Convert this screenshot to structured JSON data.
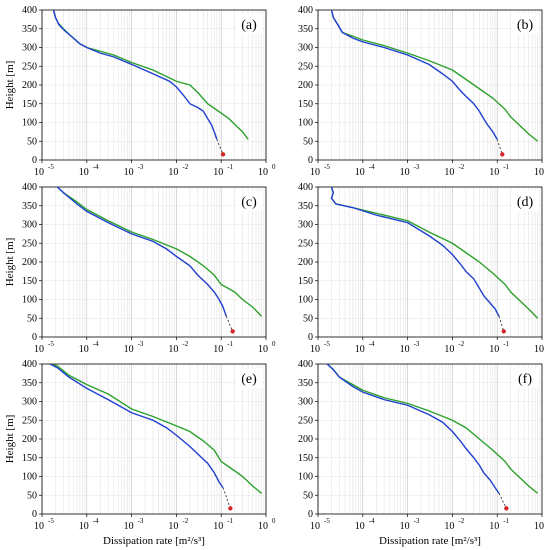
{
  "chart_data": [
    {
      "type": "line",
      "panel_label": "(a)",
      "ylabel": "Height [m]",
      "xlabel": "",
      "x_scale": "log",
      "xlim": [
        1e-05,
        1
      ],
      "ylim": [
        0,
        400
      ],
      "grid": true,
      "series": [
        {
          "color": "#2ca02c",
          "points": [
            [
              1.8e-05,
              400
            ],
            [
              2e-05,
              380
            ],
            [
              2.3e-05,
              365
            ],
            [
              3e-05,
              350
            ],
            [
              4.5e-05,
              330
            ],
            [
              7e-05,
              310
            ],
            [
              0.0001,
              300
            ],
            [
              0.0002,
              290
            ],
            [
              0.0004,
              280
            ],
            [
              0.001,
              260
            ],
            [
              0.003,
              240
            ],
            [
              0.01,
              210
            ],
            [
              0.02,
              200
            ],
            [
              0.03,
              180
            ],
            [
              0.05,
              150
            ],
            [
              0.1,
              125
            ],
            [
              0.15,
              110
            ],
            [
              0.2,
              95
            ],
            [
              0.3,
              75
            ],
            [
              0.4,
              55
            ]
          ]
        },
        {
          "color": "#1f3fd0",
          "points": [
            [
              1.8e-05,
              400
            ],
            [
              2e-05,
              380
            ],
            [
              2.4e-05,
              360
            ],
            [
              3.2e-05,
              345
            ],
            [
              4.5e-05,
              330
            ],
            [
              7e-05,
              310
            ],
            [
              0.0001,
              300
            ],
            [
              0.0002,
              285
            ],
            [
              0.0004,
              275
            ],
            [
              0.001,
              255
            ],
            [
              0.003,
              230
            ],
            [
              0.007,
              210
            ],
            [
              0.01,
              195
            ],
            [
              0.015,
              170
            ],
            [
              0.02,
              150
            ],
            [
              0.03,
              140
            ],
            [
              0.04,
              130
            ],
            [
              0.05,
              110
            ],
            [
              0.06,
              95
            ],
            [
              0.07,
              75
            ],
            [
              0.08,
              55
            ]
          ]
        }
      ],
      "extrapolation": {
        "from": [
          0.08,
          55
        ],
        "to": [
          0.11,
          15
        ],
        "marker": [
          0.11,
          15
        ]
      }
    },
    {
      "type": "line",
      "panel_label": "(b)",
      "ylabel": "",
      "xlabel": "",
      "x_scale": "log",
      "xlim": [
        1e-05,
        1
      ],
      "ylim": [
        0,
        400
      ],
      "grid": true,
      "series": [
        {
          "color": "#2ca02c",
          "points": [
            [
              2e-05,
              400
            ],
            [
              2.2e-05,
              380
            ],
            [
              2.8e-05,
              360
            ],
            [
              3.5e-05,
              340
            ],
            [
              6e-05,
              330
            ],
            [
              0.0001,
              320
            ],
            [
              0.0003,
              305
            ],
            [
              0.001,
              285
            ],
            [
              0.003,
              265
            ],
            [
              0.01,
              240
            ],
            [
              0.02,
              215
            ],
            [
              0.04,
              190
            ],
            [
              0.08,
              165
            ],
            [
              0.15,
              135
            ],
            [
              0.2,
              115
            ],
            [
              0.3,
              95
            ],
            [
              0.5,
              70
            ],
            [
              0.8,
              50
            ]
          ]
        },
        {
          "color": "#1f3fd0",
          "points": [
            [
              2e-05,
              400
            ],
            [
              2.2e-05,
              380
            ],
            [
              2.8e-05,
              360
            ],
            [
              3.5e-05,
              340
            ],
            [
              6e-05,
              325
            ],
            [
              0.0001,
              315
            ],
            [
              0.0003,
              300
            ],
            [
              0.001,
              280
            ],
            [
              0.003,
              255
            ],
            [
              0.006,
              230
            ],
            [
              0.01,
              210
            ],
            [
              0.015,
              185
            ],
            [
              0.02,
              170
            ],
            [
              0.03,
              150
            ],
            [
              0.04,
              130
            ],
            [
              0.05,
              110
            ],
            [
              0.06,
              95
            ],
            [
              0.08,
              75
            ],
            [
              0.1,
              55
            ]
          ]
        }
      ],
      "extrapolation": {
        "from": [
          0.1,
          55
        ],
        "to": [
          0.13,
          15
        ],
        "marker": [
          0.13,
          15
        ]
      }
    },
    {
      "type": "line",
      "panel_label": "(c)",
      "ylabel": "Height [m]",
      "xlabel": "",
      "x_scale": "log",
      "xlim": [
        1e-05,
        1
      ],
      "ylim": [
        0,
        400
      ],
      "grid": true,
      "series": [
        {
          "color": "#2ca02c",
          "points": [
            [
              2.2e-05,
              400
            ],
            [
              3e-05,
              385
            ],
            [
              6e-05,
              360
            ],
            [
              0.0001,
              340
            ],
            [
              0.0003,
              310
            ],
            [
              0.001,
              280
            ],
            [
              0.003,
              260
            ],
            [
              0.01,
              235
            ],
            [
              0.02,
              215
            ],
            [
              0.04,
              190
            ],
            [
              0.07,
              165
            ],
            [
              0.1,
              140
            ],
            [
              0.2,
              120
            ],
            [
              0.3,
              100
            ],
            [
              0.5,
              80
            ],
            [
              0.8,
              55
            ]
          ]
        },
        {
          "color": "#1f3fd0",
          "points": [
            [
              2.2e-05,
              400
            ],
            [
              3e-05,
              385
            ],
            [
              6e-05,
              355
            ],
            [
              0.0001,
              335
            ],
            [
              0.0003,
              305
            ],
            [
              0.001,
              275
            ],
            [
              0.003,
              255
            ],
            [
              0.006,
              235
            ],
            [
              0.01,
              215
            ],
            [
              0.02,
              190
            ],
            [
              0.03,
              165
            ],
            [
              0.05,
              140
            ],
            [
              0.07,
              120
            ],
            [
              0.09,
              100
            ],
            [
              0.11,
              80
            ],
            [
              0.13,
              55
            ]
          ]
        }
      ],
      "extrapolation": {
        "from": [
          0.13,
          55
        ],
        "to": [
          0.18,
          15
        ],
        "marker": [
          0.18,
          15
        ]
      }
    },
    {
      "type": "line",
      "panel_label": "(d)",
      "ylabel": "",
      "xlabel": "",
      "x_scale": "log",
      "xlim": [
        1e-05,
        1
      ],
      "ylim": [
        0,
        400
      ],
      "grid": true,
      "series": [
        {
          "color": "#2ca02c",
          "points": [
            [
              2e-05,
              400
            ],
            [
              2.2e-05,
              385
            ],
            [
              2e-05,
              370
            ],
            [
              2.5e-05,
              355
            ],
            [
              6e-05,
              345
            ],
            [
              0.0002,
              330
            ],
            [
              0.001,
              310
            ],
            [
              0.003,
              280
            ],
            [
              0.01,
              250
            ],
            [
              0.02,
              225
            ],
            [
              0.04,
              200
            ],
            [
              0.08,
              170
            ],
            [
              0.15,
              140
            ],
            [
              0.2,
              120
            ],
            [
              0.3,
              100
            ],
            [
              0.5,
              75
            ],
            [
              0.8,
              50
            ]
          ]
        },
        {
          "color": "#1f3fd0",
          "points": [
            [
              2e-05,
              400
            ],
            [
              2.2e-05,
              385
            ],
            [
              2e-05,
              370
            ],
            [
              2.5e-05,
              355
            ],
            [
              6e-05,
              345
            ],
            [
              0.0002,
              325
            ],
            [
              0.001,
              305
            ],
            [
              0.003,
              270
            ],
            [
              0.006,
              245
            ],
            [
              0.01,
              220
            ],
            [
              0.015,
              195
            ],
            [
              0.02,
              175
            ],
            [
              0.03,
              155
            ],
            [
              0.04,
              130
            ],
            [
              0.05,
              110
            ],
            [
              0.07,
              90
            ],
            [
              0.09,
              75
            ],
            [
              0.11,
              55
            ]
          ]
        }
      ],
      "extrapolation": {
        "from": [
          0.11,
          55
        ],
        "to": [
          0.14,
          15
        ],
        "marker": [
          0.14,
          15
        ]
      }
    },
    {
      "type": "line",
      "panel_label": "(e)",
      "ylabel": "Height [m]",
      "xlabel": "Dissipation rate [m²/s³]",
      "x_scale": "log",
      "xlim": [
        1e-05,
        1
      ],
      "ylim": [
        0,
        400
      ],
      "grid": true,
      "series": [
        {
          "color": "#2ca02c",
          "points": [
            [
              1.5e-05,
              400
            ],
            [
              2.2e-05,
              395
            ],
            [
              4e-05,
              370
            ],
            [
              0.0001,
              345
            ],
            [
              0.0003,
              320
            ],
            [
              0.001,
              280
            ],
            [
              0.003,
              260
            ],
            [
              0.01,
              235
            ],
            [
              0.02,
              220
            ],
            [
              0.04,
              195
            ],
            [
              0.07,
              170
            ],
            [
              0.1,
              140
            ],
            [
              0.2,
              115
            ],
            [
              0.3,
              100
            ],
            [
              0.5,
              75
            ],
            [
              0.8,
              55
            ]
          ]
        },
        {
          "color": "#1f3fd0",
          "points": [
            [
              1.5e-05,
              400
            ],
            [
              2.2e-05,
              390
            ],
            [
              4e-05,
              365
            ],
            [
              0.0001,
              335
            ],
            [
              0.0003,
              305
            ],
            [
              0.001,
              270
            ],
            [
              0.003,
              250
            ],
            [
              0.006,
              230
            ],
            [
              0.01,
              210
            ],
            [
              0.02,
              180
            ],
            [
              0.03,
              160
            ],
            [
              0.05,
              135
            ],
            [
              0.07,
              110
            ],
            [
              0.09,
              85
            ],
            [
              0.11,
              70
            ]
          ]
        }
      ],
      "extrapolation": {
        "from": [
          0.11,
          70
        ],
        "to": [
          0.16,
          15
        ],
        "marker": [
          0.16,
          15
        ]
      }
    },
    {
      "type": "line",
      "panel_label": "(f)",
      "ylabel": "",
      "xlabel": "Dissipation rate [m²/s³]",
      "x_scale": "log",
      "xlim": [
        1e-05,
        1
      ],
      "ylim": [
        0,
        400
      ],
      "grid": true,
      "series": [
        {
          "color": "#2ca02c",
          "points": [
            [
              1.6e-05,
              400
            ],
            [
              2.2e-05,
              385
            ],
            [
              3e-05,
              365
            ],
            [
              6e-05,
              345
            ],
            [
              0.0001,
              330
            ],
            [
              0.0003,
              310
            ],
            [
              0.001,
              295
            ],
            [
              0.003,
              275
            ],
            [
              0.01,
              250
            ],
            [
              0.02,
              230
            ],
            [
              0.04,
              200
            ],
            [
              0.08,
              170
            ],
            [
              0.15,
              140
            ],
            [
              0.2,
              120
            ],
            [
              0.3,
              100
            ],
            [
              0.5,
              75
            ],
            [
              0.8,
              55
            ]
          ]
        },
        {
          "color": "#1f3fd0",
          "points": [
            [
              1.6e-05,
              400
            ],
            [
              2.2e-05,
              385
            ],
            [
              3e-05,
              365
            ],
            [
              6e-05,
              340
            ],
            [
              0.0001,
              325
            ],
            [
              0.0003,
              305
            ],
            [
              0.001,
              290
            ],
            [
              0.003,
              265
            ],
            [
              0.006,
              245
            ],
            [
              0.01,
              220
            ],
            [
              0.015,
              195
            ],
            [
              0.02,
              175
            ],
            [
              0.03,
              150
            ],
            [
              0.04,
              130
            ],
            [
              0.05,
              110
            ],
            [
              0.07,
              90
            ],
            [
              0.09,
              70
            ],
            [
              0.11,
              55
            ]
          ]
        }
      ],
      "extrapolation": {
        "from": [
          0.11,
          55
        ],
        "to": [
          0.16,
          15
        ],
        "marker": [
          0.16,
          15
        ]
      }
    }
  ],
  "axes": {
    "y_ticks": [
      "0",
      "50",
      "100",
      "150",
      "200",
      "250",
      "300",
      "350",
      "400"
    ],
    "x_ticks": [
      "10",
      "10",
      "10",
      "10",
      "10",
      "10"
    ],
    "x_tick_exponents": [
      "-5",
      "-4",
      "-3",
      "-2",
      "-1",
      "0"
    ]
  },
  "colors": {
    "green": "#2ca02c",
    "blue": "#1f3fd0",
    "marker": "#d62728"
  }
}
